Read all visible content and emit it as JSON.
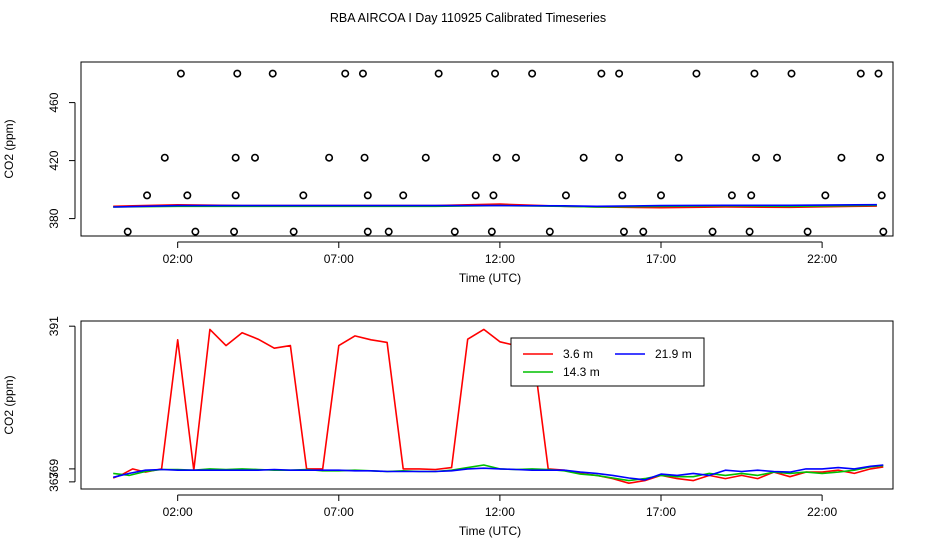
{
  "figure": {
    "title": "RBA AIRCOA I  Day 110925  Calibrated Timeseries"
  },
  "chart_data": [
    {
      "type": "line",
      "title": "",
      "xlabel": "Time (UTC)",
      "ylabel": "CO2 (ppm)",
      "x_unit": "hours UTC",
      "xlim": [
        -1.0,
        24.2
      ],
      "ylim": [
        368,
        488
      ],
      "x_ticks": [
        {
          "value": 2,
          "label": "02:00"
        },
        {
          "value": 7,
          "label": "07:00"
        },
        {
          "value": 12,
          "label": "12:00"
        },
        {
          "value": 17,
          "label": "17:00"
        },
        {
          "value": 22,
          "label": "22:00"
        }
      ],
      "y_ticks": [
        {
          "value": 380,
          "label": "380"
        },
        {
          "value": 420,
          "label": "420"
        },
        {
          "value": 460,
          "label": "460"
        }
      ],
      "series": [
        {
          "color": "#ff0000",
          "style": "line",
          "x": [
            0.0,
            2.0,
            4.0,
            6.0,
            8.0,
            10.0,
            11.0,
            12.0,
            14.0,
            15.0,
            17.0,
            19.0,
            21.0,
            23.0,
            23.7
          ],
          "y": [
            388.5,
            389.5,
            389,
            389,
            389,
            389,
            389.5,
            390,
            388.5,
            388.0,
            387.5,
            388,
            387.8,
            388.5,
            388.6
          ]
        },
        {
          "color": "#00c000",
          "style": "line",
          "x": [
            0.0,
            2.0,
            4.0,
            6.0,
            8.0,
            10.0,
            12.0,
            14.0,
            15.0,
            17.0,
            19.0,
            21.0,
            23.0,
            23.7
          ],
          "y": [
            388.0,
            388.5,
            388.5,
            388.5,
            388.5,
            388.5,
            389,
            388.5,
            388.0,
            388.5,
            388.8,
            388.5,
            389,
            389.2
          ]
        },
        {
          "color": "#0000ff",
          "style": "line",
          "x": [
            0.0,
            2.0,
            4.0,
            6.0,
            8.0,
            10.0,
            12.0,
            14.0,
            15.0,
            17.0,
            19.0,
            21.0,
            23.0,
            23.7
          ],
          "y": [
            388.0,
            389,
            389,
            389,
            389,
            389,
            389,
            388.8,
            388.5,
            389,
            389.2,
            389.2,
            389.5,
            389.6
          ]
        },
        {
          "color": "#000000",
          "style": "points",
          "x": [
            2.1,
            3.85,
            4.95,
            7.2,
            7.75,
            10.1,
            11.85,
            13.0,
            15.15,
            15.7,
            18.1,
            19.9,
            21.05,
            23.2,
            23.75,
            1.6,
            3.8,
            4.4,
            6.7,
            7.8,
            9.7,
            11.9,
            12.5,
            14.6,
            15.7,
            17.55,
            19.95,
            20.6,
            22.6,
            23.8,
            1.05,
            2.3,
            3.8,
            5.9,
            7.9,
            9.0,
            11.25,
            11.8,
            14.05,
            15.8,
            17.0,
            19.2,
            19.8,
            22.1,
            23.85,
            0.45,
            2.55,
            3.75,
            5.6,
            7.9,
            8.55,
            10.6,
            11.75,
            13.55,
            15.85,
            16.45,
            18.6,
            19.75,
            21.55,
            23.9
          ],
          "y": [
            480,
            480,
            480,
            480,
            480,
            480,
            480,
            480,
            480,
            480,
            480,
            480,
            480,
            480,
            480,
            422,
            422,
            422,
            422,
            422,
            422,
            422,
            422,
            422,
            422,
            422,
            422,
            422,
            422,
            422,
            396,
            396,
            396,
            396,
            396,
            396,
            396,
            396,
            396,
            396,
            396,
            396,
            396,
            396,
            396,
            371,
            371,
            371,
            371,
            371,
            371,
            371,
            371,
            371,
            371,
            371,
            371,
            371,
            371,
            371
          ]
        }
      ]
    },
    {
      "type": "line",
      "title": "",
      "xlabel": "Time (UTC)",
      "ylabel": "CO2 (ppm)",
      "x_unit": "hours UTC",
      "xlim": [
        -1.0,
        24.2
      ],
      "ylim": [
        365.9,
        391.8
      ],
      "x_ticks": [
        {
          "value": 2,
          "label": "02:00"
        },
        {
          "value": 7,
          "label": "07:00"
        },
        {
          "value": 12,
          "label": "12:00"
        },
        {
          "value": 17,
          "label": "17:00"
        },
        {
          "value": 22,
          "label": "22:00"
        }
      ],
      "y_ticks": [
        {
          "value": 367,
          "label": "367"
        },
        {
          "value": 369,
          "label": "369"
        },
        {
          "value": 391,
          "label": "391"
        }
      ],
      "legend": {
        "position": "top-center",
        "columns": 2
      },
      "series": [
        {
          "name": "3.6 m",
          "color": "#ff0000",
          "x": [
            0.0,
            0.3,
            0.6,
            1.0,
            1.5,
            2.0,
            2.5,
            3.0,
            3.5,
            4.0,
            4.5,
            5.0,
            5.5,
            6.0,
            6.5,
            7.0,
            7.5,
            8.0,
            8.5,
            9.0,
            9.5,
            10.0,
            10.5,
            11.0,
            11.5,
            12.0,
            12.5,
            13.0,
            13.5,
            14.0,
            14.5,
            15.0,
            15.5,
            16.0,
            16.5,
            17.0,
            17.5,
            18.0,
            18.5,
            19.0,
            19.5,
            20.0,
            20.5,
            21.0,
            21.5,
            22.0,
            22.5,
            23.0,
            23.5,
            23.9
          ],
          "y": [
            367.6,
            368.2,
            369.0,
            368.5,
            369.0,
            388.9,
            368.8,
            390.5,
            388.0,
            390.0,
            389.0,
            387.6,
            388.0,
            369.0,
            369.0,
            388.0,
            389.5,
            388.9,
            388.5,
            369.0,
            369.0,
            368.9,
            369.2,
            389.0,
            390.5,
            388.6,
            388.0,
            388.3,
            369.0,
            368.8,
            368.3,
            368.0,
            367.5,
            366.8,
            367.2,
            368.0,
            367.5,
            367.2,
            368.0,
            367.5,
            368.0,
            367.5,
            368.5,
            367.8,
            368.5,
            368.5,
            368.8,
            368.3,
            369.0,
            369.3
          ]
        },
        {
          "name": "14.3 m",
          "color": "#00c000",
          "x": [
            0.0,
            0.5,
            1.0,
            1.5,
            2.0,
            2.5,
            3.0,
            3.5,
            4.0,
            4.5,
            5.0,
            5.5,
            6.0,
            6.5,
            7.0,
            7.5,
            8.0,
            8.5,
            9.0,
            9.5,
            10.0,
            10.5,
            11.0,
            11.5,
            12.0,
            12.5,
            13.0,
            13.5,
            14.0,
            14.5,
            15.0,
            15.5,
            16.0,
            16.5,
            17.0,
            17.5,
            18.0,
            18.5,
            19.0,
            19.5,
            20.0,
            20.5,
            21.0,
            21.5,
            22.0,
            22.5,
            23.0,
            23.5,
            23.9
          ],
          "y": [
            368.3,
            368.0,
            368.6,
            368.9,
            368.9,
            368.8,
            369.0,
            368.9,
            369.0,
            368.9,
            368.8,
            368.8,
            368.9,
            368.7,
            368.7,
            368.8,
            368.7,
            368.6,
            368.7,
            368.6,
            368.6,
            368.8,
            369.2,
            369.6,
            369.0,
            368.9,
            369.0,
            368.9,
            368.7,
            368.2,
            368.0,
            367.6,
            367.2,
            367.5,
            368.0,
            367.8,
            367.8,
            368.3,
            368.0,
            368.3,
            368.0,
            368.5,
            368.3,
            368.5,
            368.3,
            368.5,
            368.8,
            369.3,
            369.5
          ]
        },
        {
          "name": "21.9 m",
          "color": "#0000ff",
          "x": [
            0.0,
            0.5,
            1.0,
            1.5,
            2.0,
            2.5,
            3.0,
            3.5,
            4.0,
            4.5,
            5.0,
            5.5,
            6.0,
            6.5,
            7.0,
            7.5,
            8.0,
            8.5,
            9.0,
            9.5,
            10.0,
            10.5,
            11.0,
            11.5,
            12.0,
            12.5,
            13.0,
            13.5,
            14.0,
            14.5,
            15.0,
            15.5,
            16.0,
            16.5,
            17.0,
            17.5,
            18.0,
            18.5,
            19.0,
            19.5,
            20.0,
            20.5,
            21.0,
            21.5,
            22.0,
            22.5,
            23.0,
            23.5,
            23.9
          ],
          "y": [
            367.7,
            368.3,
            368.8,
            368.9,
            368.8,
            368.8,
            368.8,
            368.8,
            368.8,
            368.8,
            368.9,
            368.8,
            368.8,
            368.8,
            368.8,
            368.7,
            368.7,
            368.6,
            368.6,
            368.6,
            368.6,
            368.7,
            369.0,
            369.1,
            369.0,
            368.9,
            368.8,
            368.8,
            368.8,
            368.5,
            368.3,
            368.0,
            367.6,
            367.3,
            368.2,
            368.0,
            368.3,
            368.0,
            368.8,
            368.6,
            368.8,
            368.6,
            368.5,
            369.0,
            369.0,
            369.2,
            369.0,
            369.4,
            369.6
          ]
        }
      ]
    }
  ]
}
